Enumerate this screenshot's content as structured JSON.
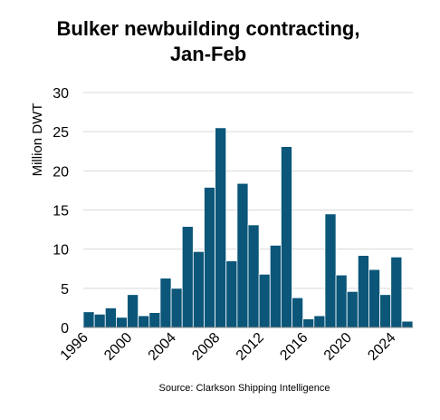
{
  "chart_data": {
    "type": "bar",
    "title_line1": "Bulker newbuilding contracting,",
    "title_line2": "Jan-Feb",
    "ylabel": "Million DWT",
    "xlabel": "",
    "source": "Source: Clarkson Shipping Intelligence",
    "ylim": [
      0,
      30
    ],
    "yticks": [
      0,
      5,
      10,
      15,
      20,
      25,
      30
    ],
    "xtick_labels": [
      "1996",
      "2000",
      "2004",
      "2008",
      "2012",
      "2016",
      "2020",
      "2024"
    ],
    "categories": [
      "1996",
      "1997",
      "1998",
      "1999",
      "2000",
      "2001",
      "2002",
      "2003",
      "2004",
      "2005",
      "2006",
      "2007",
      "2008",
      "2009",
      "2010",
      "2011",
      "2012",
      "2013",
      "2014",
      "2015",
      "2016",
      "2017",
      "2018",
      "2019",
      "2020",
      "2021",
      "2022",
      "2023",
      "2024",
      "2025"
    ],
    "values": [
      2.0,
      1.7,
      2.5,
      1.3,
      4.2,
      1.5,
      1.9,
      6.3,
      5.0,
      12.9,
      9.7,
      17.9,
      25.5,
      8.5,
      18.4,
      13.1,
      6.8,
      10.5,
      23.1,
      3.8,
      1.1,
      1.5,
      14.5,
      6.7,
      4.6,
      9.2,
      7.4,
      4.2,
      9.0,
      0.8
    ],
    "bar_color": "#0b5679",
    "grid": true,
    "grid_color": "#d9d9d9",
    "legend": "none"
  }
}
